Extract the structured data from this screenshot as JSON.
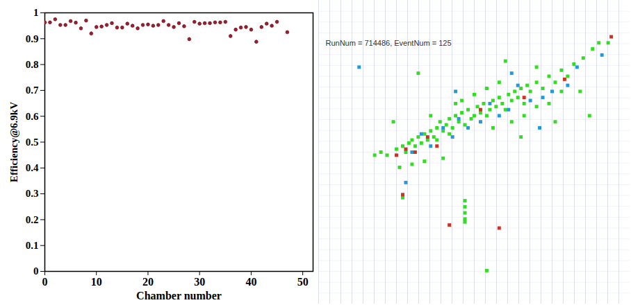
{
  "chart_data": [
    {
      "type": "scatter",
      "xlabel": "Chamber number",
      "ylabel": "Efficiency@6.9kV",
      "x": [
        0,
        1,
        2,
        3,
        4,
        5,
        6,
        7,
        8,
        9,
        10,
        11,
        12,
        13,
        14,
        15,
        16,
        17,
        18,
        19,
        20,
        21,
        22,
        23,
        24,
        25,
        26,
        27,
        28,
        29,
        30,
        31,
        32,
        33,
        34,
        35,
        36,
        37,
        38,
        39,
        40,
        41,
        42,
        43,
        44,
        45,
        47
      ],
      "values": [
        0.963,
        0.963,
        0.975,
        0.953,
        0.953,
        0.968,
        0.962,
        0.94,
        0.97,
        0.92,
        0.945,
        0.947,
        0.953,
        0.96,
        0.943,
        0.943,
        0.958,
        0.95,
        0.94,
        0.953,
        0.955,
        0.95,
        0.953,
        0.968,
        0.953,
        0.945,
        0.96,
        0.948,
        0.898,
        0.965,
        0.958,
        0.96,
        0.96,
        0.963,
        0.963,
        0.965,
        0.91,
        0.935,
        0.943,
        0.945,
        0.935,
        0.888,
        0.945,
        0.958,
        0.95,
        0.965,
        0.925
      ],
      "errors": [
        0.005,
        0.005,
        0.004,
        0.005,
        0.005,
        0.004,
        0.005,
        0.005,
        0.004,
        0.006,
        0.005,
        0.005,
        0.005,
        0.005,
        0.005,
        0.005,
        0.005,
        0.005,
        0.005,
        0.005,
        0.005,
        0.005,
        0.005,
        0.004,
        0.005,
        0.005,
        0.005,
        0.005,
        0.006,
        0.005,
        0.005,
        0.005,
        0.005,
        0.005,
        0.005,
        0.005,
        0.006,
        0.005,
        0.005,
        0.005,
        0.005,
        0.006,
        0.005,
        0.005,
        0.005,
        0.005,
        0.005
      ],
      "color": "#a01c2c",
      "marker": "circle",
      "xlim": [
        0,
        52
      ],
      "ylim": [
        0,
        1
      ],
      "xticks": [
        0,
        10,
        20,
        30,
        40,
        50
      ],
      "yticks": [
        0,
        0.1,
        0.2,
        0.3,
        0.4,
        0.5,
        0.6,
        0.7,
        0.8,
        0.9,
        1
      ]
    },
    {
      "type": "scatter",
      "title": "RunNum = 714486, EventNum = 125",
      "xlim": [
        0,
        100
      ],
      "ylim": [
        0,
        100
      ],
      "grid": true,
      "tick_labels": false,
      "series": [
        {
          "color": "#33dd22",
          "marker": "square",
          "points": [
            [
              20,
              50
            ],
            [
              22,
              49
            ],
            [
              25,
              51
            ],
            [
              27,
              52
            ],
            [
              28,
              50
            ],
            [
              29,
              53
            ],
            [
              30,
              54
            ],
            [
              31,
              52
            ],
            [
              32,
              55
            ],
            [
              33,
              53
            ],
            [
              34,
              56
            ],
            [
              35,
              54
            ],
            [
              36,
              57
            ],
            [
              37,
              55
            ],
            [
              38,
              58
            ],
            [
              38,
              54
            ],
            [
              39,
              60
            ],
            [
              40,
              57
            ],
            [
              41,
              59
            ],
            [
              42,
              61
            ],
            [
              42,
              56
            ],
            [
              43,
              58
            ],
            [
              44,
              62
            ],
            [
              45,
              60
            ],
            [
              46,
              63
            ],
            [
              47,
              59
            ],
            [
              48,
              64
            ],
            [
              49,
              61
            ],
            [
              50,
              62
            ],
            [
              51,
              65
            ],
            [
              52,
              63
            ],
            [
              53,
              66
            ],
            [
              54,
              62
            ],
            [
              55,
              64
            ],
            [
              56,
              67
            ],
            [
              57,
              65
            ],
            [
              58,
              68
            ],
            [
              59,
              66
            ],
            [
              60,
              64
            ],
            [
              61,
              69
            ],
            [
              62,
              67
            ],
            [
              63,
              70
            ],
            [
              64,
              68
            ],
            [
              65,
              71
            ],
            [
              66,
              66
            ],
            [
              67,
              72
            ],
            [
              68,
              70
            ],
            [
              70,
              73
            ],
            [
              72,
              71
            ],
            [
              74,
              75
            ],
            [
              76,
              73
            ],
            [
              78,
              77
            ],
            [
              80,
              75
            ],
            [
              82,
              79
            ],
            [
              85,
              81
            ],
            [
              88,
              84
            ],
            [
              90,
              86
            ],
            [
              62,
              60
            ],
            [
              66,
              62
            ],
            [
              70,
              65
            ],
            [
              74,
              66
            ],
            [
              78,
              70
            ],
            [
              58,
              73
            ],
            [
              54,
              71
            ],
            [
              50,
              69
            ],
            [
              46,
              67
            ],
            [
              44,
              66
            ],
            [
              36,
              62
            ],
            [
              34,
              47
            ],
            [
              30,
              46
            ],
            [
              26,
              45
            ],
            [
              47,
              34
            ],
            [
              47,
              32
            ],
            [
              47,
              30
            ],
            [
              47,
              28
            ],
            [
              47,
              27
            ],
            [
              32,
              76
            ],
            [
              60,
              80
            ],
            [
              87,
              62
            ],
            [
              18,
              49
            ],
            [
              27,
              35
            ],
            [
              54,
              11
            ],
            [
              65,
              55
            ],
            [
              84,
              70
            ],
            [
              76,
              60
            ],
            [
              40,
              48
            ],
            [
              24,
              60
            ],
            [
              56,
              58
            ],
            [
              70,
              78
            ],
            [
              93,
              86
            ]
          ]
        },
        {
          "color": "#2299dd",
          "marker": "square",
          "points": [
            [
              30,
              50
            ],
            [
              33,
              56
            ],
            [
              36,
              52
            ],
            [
              40,
              58
            ],
            [
              43,
              55
            ],
            [
              45,
              61
            ],
            [
              48,
              58
            ],
            [
              52,
              60
            ],
            [
              55,
              66
            ],
            [
              58,
              62
            ],
            [
              61,
              64
            ],
            [
              64,
              72
            ],
            [
              68,
              67
            ],
            [
              72,
              68
            ],
            [
              75,
              70
            ],
            [
              80,
              72
            ],
            [
              83,
              78
            ],
            [
              13,
              78
            ],
            [
              44,
              70
            ],
            [
              62,
              76
            ],
            [
              91,
              82
            ],
            [
              28,
              40
            ],
            [
              71,
              58
            ]
          ]
        },
        {
          "color": "#cc3322",
          "marker": "square",
          "points": [
            [
              25,
              49
            ],
            [
              28,
              51
            ],
            [
              31,
              50
            ],
            [
              35,
              55
            ],
            [
              38,
              52
            ],
            [
              42,
              26
            ],
            [
              58,
              25
            ],
            [
              27,
              36
            ],
            [
              94,
              88
            ],
            [
              66,
              68
            ],
            [
              79,
              74
            ],
            [
              52,
              64
            ]
          ]
        }
      ]
    }
  ]
}
